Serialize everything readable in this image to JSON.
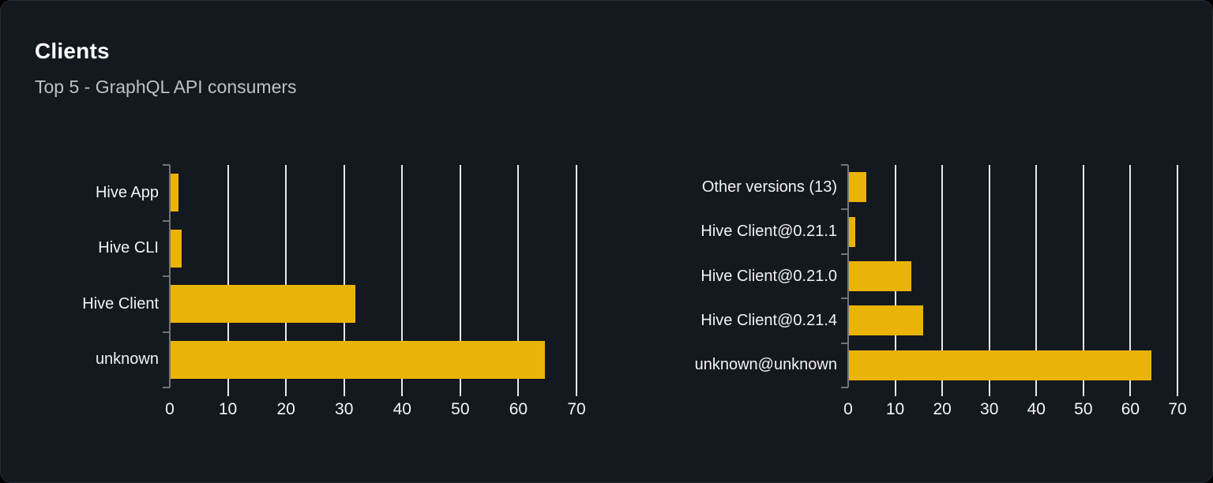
{
  "card": {
    "title": "Clients",
    "subtitle": "Top 5 - GraphQL API consumers"
  },
  "colors": {
    "page_bg": "#000000",
    "card_bg": "#14181f",
    "card_border": "#272c35",
    "bar": "#eab308",
    "gridline": "#e7e9ed",
    "axis": "#70757d",
    "title_text": "#ffffff",
    "subtitle_text": "#bcc1c8",
    "label_text": "#f1f3f5"
  },
  "chart_data": [
    {
      "type": "bar",
      "orientation": "horizontal",
      "name": "clients-by-name",
      "categories": [
        "Hive App",
        "Hive CLI",
        "Hive Client",
        "unknown"
      ],
      "values": [
        1.5,
        2,
        32,
        64.5
      ],
      "xticks": [
        0,
        10,
        20,
        30,
        40,
        50,
        60,
        70
      ],
      "xlim": [
        0,
        70
      ],
      "grid": true,
      "legend": "none",
      "title": "",
      "xlabel": "",
      "ylabel": ""
    },
    {
      "type": "bar",
      "orientation": "horizontal",
      "name": "clients-by-version",
      "categories": [
        "Other versions (13)",
        "Hive Client@0.21.1",
        "Hive Client@0.21.0",
        "Hive Client@0.21.4",
        "unknown@unknown"
      ],
      "values": [
        3.8,
        1.5,
        13.5,
        16,
        64.5
      ],
      "xticks": [
        0,
        10,
        20,
        30,
        40,
        50,
        60,
        70
      ],
      "xlim": [
        0,
        70
      ],
      "grid": true,
      "legend": "none",
      "title": "",
      "xlabel": "",
      "ylabel": ""
    }
  ]
}
